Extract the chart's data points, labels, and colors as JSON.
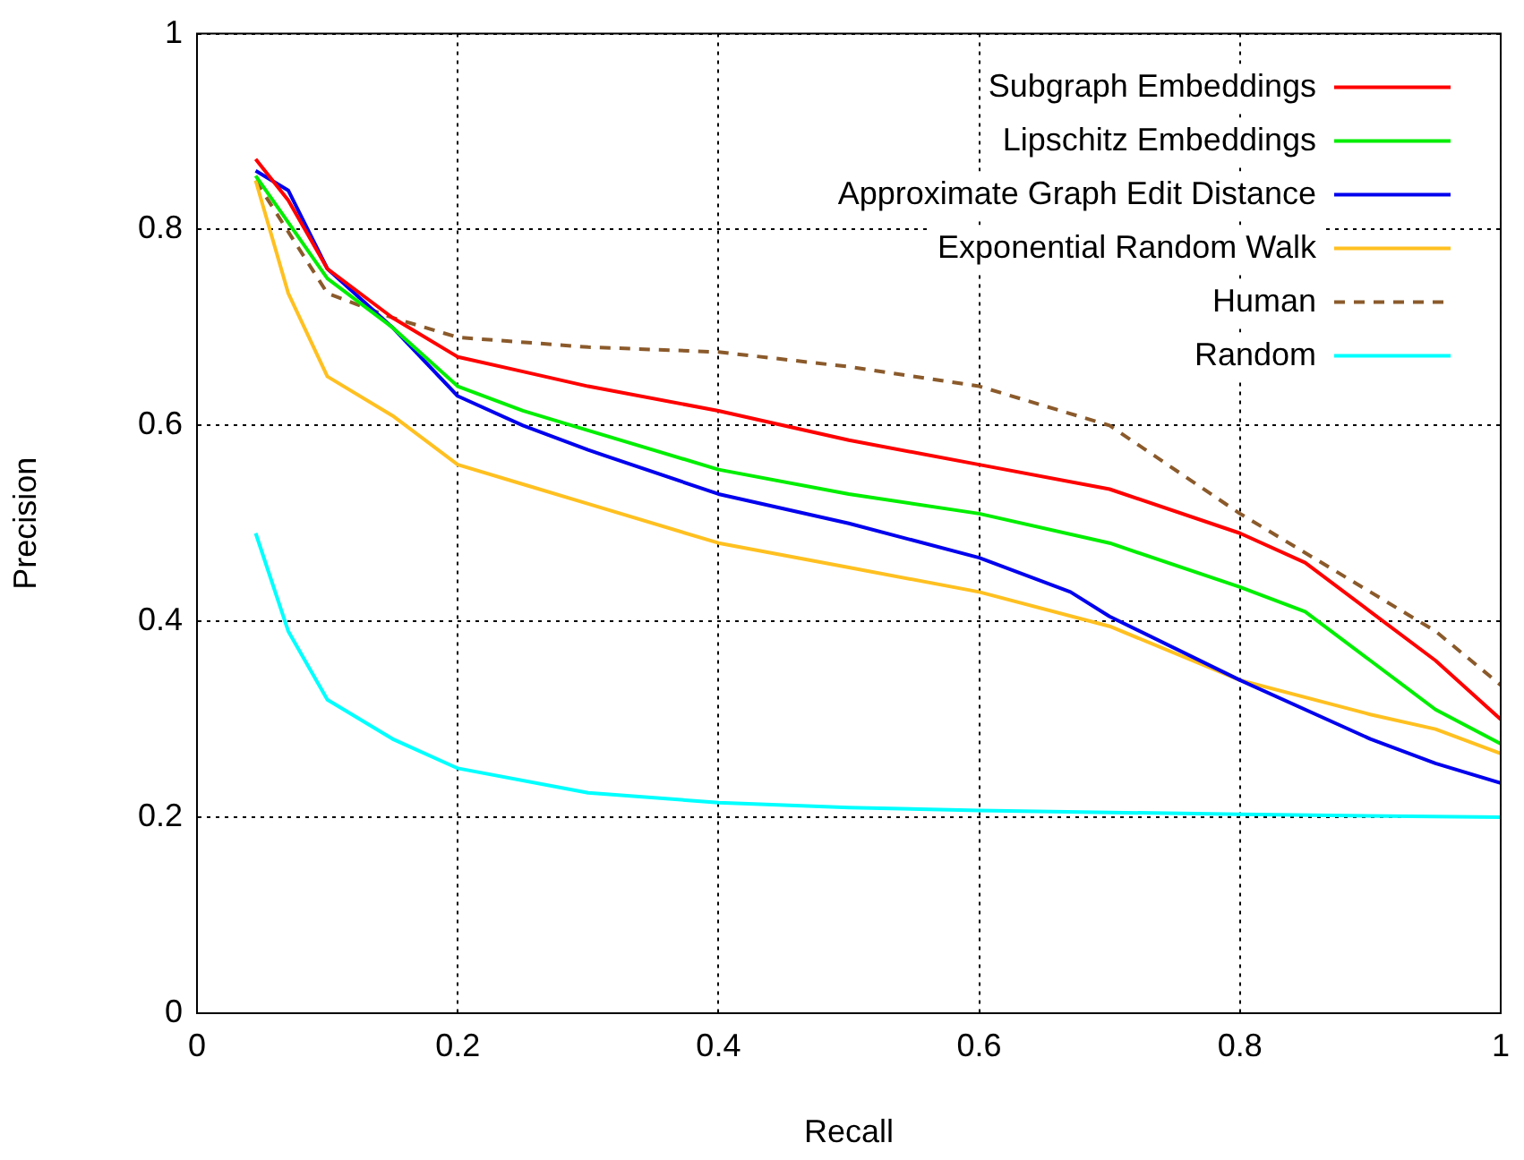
{
  "chart_data": {
    "type": "line",
    "xlabel": "Recall",
    "ylabel": "Precision",
    "xlim": [
      0,
      1
    ],
    "ylim": [
      0,
      1
    ],
    "xticks": [
      0,
      0.2,
      0.4,
      0.6,
      0.8,
      1
    ],
    "yticks": [
      0,
      0.2,
      0.4,
      0.6,
      0.8,
      1
    ],
    "grid": true,
    "legend": "top right",
    "marker": "none",
    "series": [
      {
        "name": "Subgraph Embeddings",
        "color": "#ff0000",
        "line_style": "solid",
        "x": [
          0.045,
          0.07,
          0.1,
          0.15,
          0.2,
          0.25,
          0.3,
          0.4,
          0.5,
          0.6,
          0.7,
          0.8,
          0.85,
          0.9,
          0.95,
          1
        ],
        "values": [
          0.872,
          0.83,
          0.76,
          0.71,
          0.67,
          0.655,
          0.64,
          0.615,
          0.585,
          0.56,
          0.535,
          0.49,
          0.46,
          0.41,
          0.36,
          0.3
        ]
      },
      {
        "name": "Lipschitz Embeddings",
        "color": "#00ee00",
        "line_style": "solid",
        "x": [
          0.045,
          0.1,
          0.15,
          0.2,
          0.25,
          0.3,
          0.4,
          0.5,
          0.6,
          0.7,
          0.8,
          0.85,
          0.9,
          0.95,
          1
        ],
        "values": [
          0.855,
          0.75,
          0.7,
          0.64,
          0.615,
          0.595,
          0.555,
          0.53,
          0.51,
          0.48,
          0.435,
          0.41,
          0.36,
          0.31,
          0.275
        ]
      },
      {
        "name": "Approximate Graph Edit Distance",
        "color": "#0000ee",
        "line_style": "solid",
        "x": [
          0.045,
          0.07,
          0.1,
          0.15,
          0.2,
          0.25,
          0.3,
          0.4,
          0.5,
          0.6,
          0.67,
          0.7,
          0.8,
          0.9,
          0.95,
          1
        ],
        "values": [
          0.86,
          0.84,
          0.76,
          0.7,
          0.63,
          0.6,
          0.575,
          0.53,
          0.5,
          0.465,
          0.43,
          0.405,
          0.34,
          0.28,
          0.255,
          0.235
        ]
      },
      {
        "name": "Exponential Random Walk",
        "color": "#ffc020",
        "line_style": "solid",
        "x": [
          0.045,
          0.07,
          0.1,
          0.15,
          0.2,
          0.25,
          0.3,
          0.4,
          0.5,
          0.6,
          0.7,
          0.8,
          0.9,
          0.95,
          1
        ],
        "values": [
          0.85,
          0.735,
          0.65,
          0.61,
          0.56,
          0.54,
          0.52,
          0.48,
          0.455,
          0.43,
          0.395,
          0.34,
          0.305,
          0.29,
          0.265
        ]
      },
      {
        "name": "Human",
        "color": "#8b5a2b",
        "line_style": "dashed",
        "x": [
          0.045,
          0.1,
          0.15,
          0.2,
          0.3,
          0.4,
          0.5,
          0.6,
          0.7,
          0.8,
          0.9,
          0.95,
          1
        ],
        "values": [
          0.85,
          0.735,
          0.71,
          0.69,
          0.68,
          0.675,
          0.66,
          0.64,
          0.6,
          0.51,
          0.43,
          0.39,
          0.335
        ]
      },
      {
        "name": "Random",
        "color": "#00ffff",
        "line_style": "solid",
        "x": [
          0.045,
          0.07,
          0.1,
          0.15,
          0.2,
          0.3,
          0.4,
          0.5,
          0.6,
          0.8,
          1
        ],
        "values": [
          0.49,
          0.39,
          0.32,
          0.28,
          0.25,
          0.225,
          0.215,
          0.21,
          0.207,
          0.203,
          0.2
        ]
      }
    ]
  }
}
